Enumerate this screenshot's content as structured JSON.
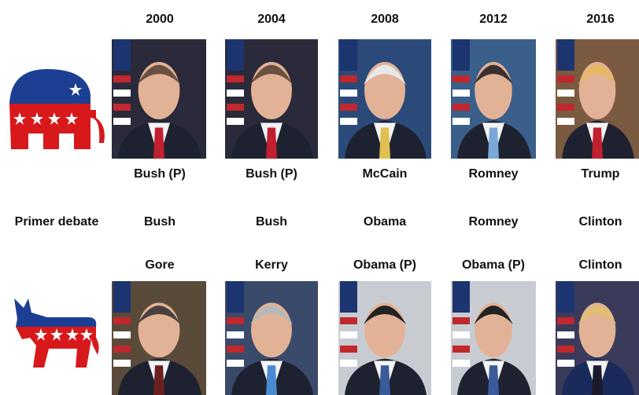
{
  "years": [
    "2000",
    "2004",
    "2008",
    "2012",
    "2016"
  ],
  "republican": {
    "candidates": [
      "Bush (P)",
      "Bush (P)",
      "McCain",
      "Romney",
      "Trump"
    ]
  },
  "first_debate": {
    "label": "Primer debate",
    "winners": [
      "Bush",
      "Bush",
      "Obama",
      "Romney",
      "Clinton"
    ]
  },
  "democrat": {
    "candidates": [
      "Gore",
      "Kerry",
      "Obama (P)",
      "Obama (P)",
      "Clinton"
    ]
  }
}
